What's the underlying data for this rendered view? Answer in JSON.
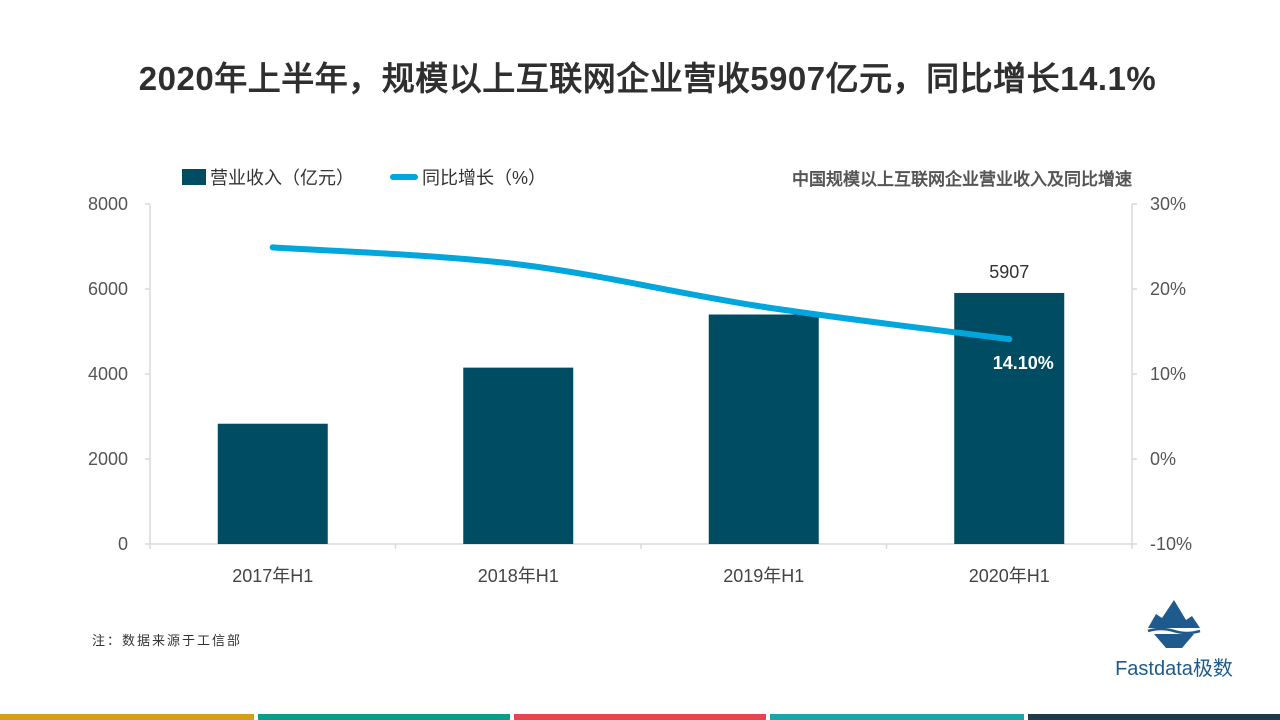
{
  "title": "2020年上半年，规模以上互联网企业营收5907亿元，同比增长14.1%",
  "legend": {
    "bar_label": "营业收入（亿元）",
    "line_label": "同比增长（%）"
  },
  "subtitle": "中国规模以上互联网企业营业收入及同比增速",
  "note": "注：数据来源于工信部",
  "logo_text": "Fastdata极数",
  "colors": {
    "bar": "#004c63",
    "line": "#00a6dc",
    "axis": "#d9d9d9",
    "stripes": [
      "#d4a017",
      "#0a9e8a",
      "#e8434f",
      "#1aa6a6",
      "#1f3a4a"
    ]
  },
  "chart_data": {
    "type": "bar",
    "categories": [
      "2017年H1",
      "2018年H1",
      "2019年H1",
      "2020年H1"
    ],
    "series": [
      {
        "name": "营业收入（亿元）",
        "type": "bar",
        "axis": "left",
        "values": [
          2830,
          4150,
          5400,
          5907
        ],
        "labels": [
          "",
          "",
          "",
          "5907"
        ]
      },
      {
        "name": "同比增长（%）",
        "type": "line",
        "axis": "right",
        "values": [
          24.9,
          22.9,
          17.9,
          14.1
        ],
        "labels": [
          "",
          "",
          "",
          "14.10%"
        ]
      }
    ],
    "y_left": {
      "min": 0,
      "max": 8000,
      "ticks": [
        "0",
        "2000",
        "4000",
        "6000",
        "8000"
      ]
    },
    "y_right": {
      "min": -10,
      "max": 30,
      "ticks": [
        "-10%",
        "0%",
        "10%",
        "20%",
        "30%"
      ]
    },
    "grid": false,
    "legend_position": "top-left"
  }
}
